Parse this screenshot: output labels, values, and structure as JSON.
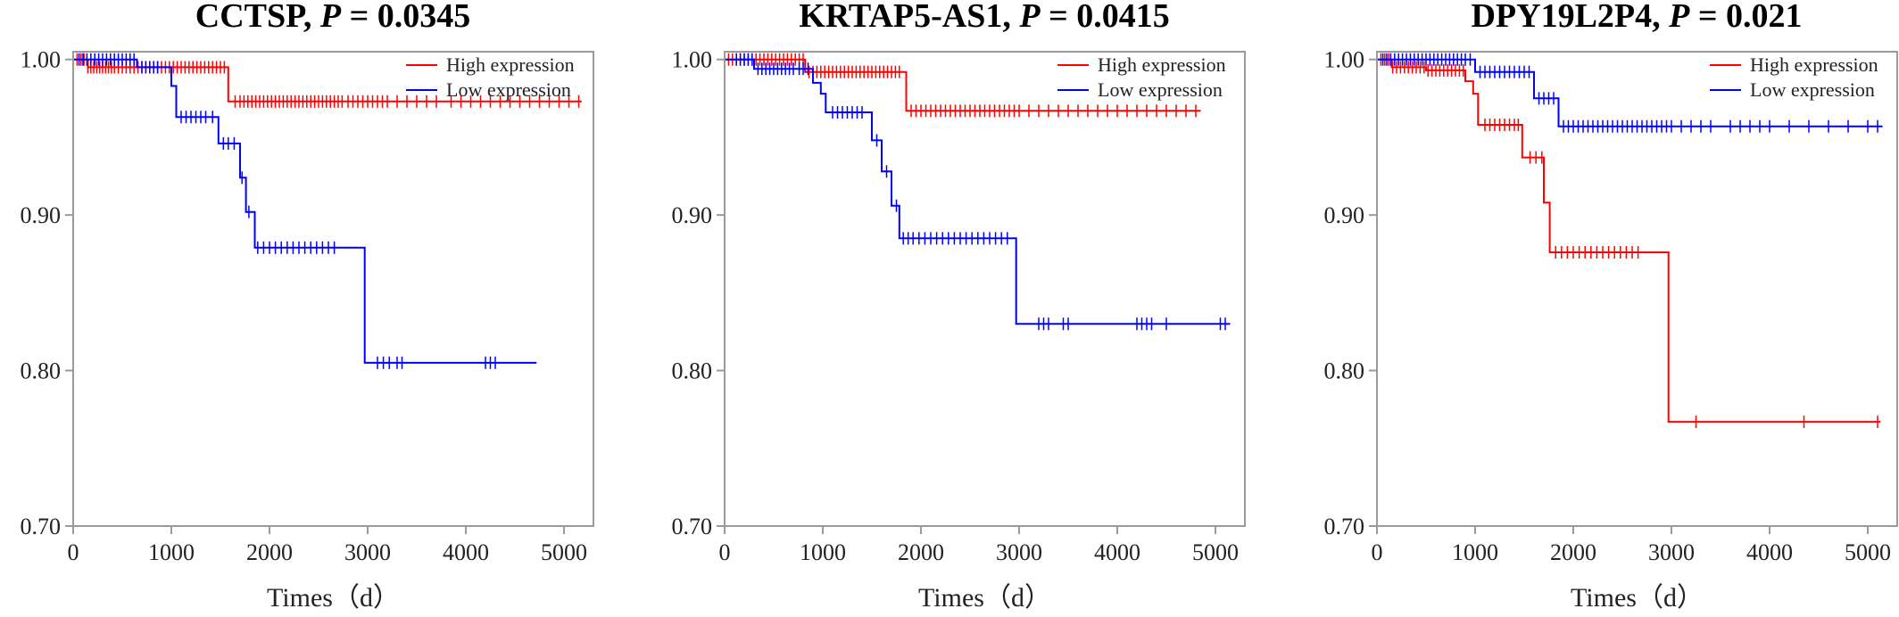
{
  "chart_data": [
    {
      "type": "line",
      "title_main": "CCTSP, ",
      "title_p": "P",
      "title_value": " = 0.0345",
      "xlabel": "Times（d）",
      "ylabel": "",
      "xlim": [
        0,
        5300
      ],
      "ylim": [
        0.7,
        1.005
      ],
      "x_ticks": [
        "0",
        "1000",
        "2000",
        "3000",
        "4000",
        "5000"
      ],
      "y_ticks": [
        "0.70",
        "0.80",
        "0.90",
        "1.00"
      ],
      "legend_position": "top-right",
      "series": [
        {
          "name": "High expression",
          "color": "#ff0000",
          "steps": [
            [
              0,
              1.0
            ],
            [
              150,
              0.995
            ],
            [
              1580,
              0.973
            ],
            [
              5180,
              0.973
            ]
          ],
          "censors": [
            40,
            80,
            110,
            150,
            180,
            210,
            240,
            270,
            300,
            330,
            360,
            390,
            420,
            460,
            500,
            540,
            580,
            620,
            660,
            700,
            740,
            780,
            820,
            860,
            900,
            940,
            980,
            1020,
            1060,
            1100,
            1140,
            1180,
            1220,
            1260,
            1300,
            1340,
            1380,
            1420,
            1460,
            1500,
            1540,
            1650,
            1700,
            1740,
            1780,
            1820,
            1860,
            1900,
            1940,
            1980,
            2020,
            2060,
            2100,
            2140,
            2180,
            2220,
            2260,
            2300,
            2340,
            2380,
            2420,
            2460,
            2500,
            2540,
            2580,
            2620,
            2660,
            2700,
            2740,
            2800,
            2850,
            2900,
            2950,
            3000,
            3050,
            3100,
            3150,
            3200,
            3300,
            3400,
            3500,
            3600,
            3700,
            3850,
            3950,
            4050,
            4150,
            4250,
            4350,
            4450,
            4550,
            4650,
            4750,
            4850,
            4950,
            5050,
            5150
          ]
        },
        {
          "name": "Low expression",
          "color": "#0000ff",
          "steps": [
            [
              0,
              1.0
            ],
            [
              650,
              0.995
            ],
            [
              1000,
              0.983
            ],
            [
              1050,
              0.963
            ],
            [
              1480,
              0.946
            ],
            [
              1700,
              0.924
            ],
            [
              1760,
              0.902
            ],
            [
              1850,
              0.879
            ],
            [
              2970,
              0.805
            ],
            [
              4720,
              0.805
            ]
          ],
          "censors": [
            60,
            100,
            140,
            180,
            220,
            260,
            300,
            340,
            380,
            420,
            460,
            500,
            540,
            580,
            620,
            700,
            740,
            780,
            820,
            860,
            1100,
            1150,
            1200,
            1250,
            1300,
            1350,
            1420,
            1530,
            1580,
            1640,
            1720,
            1790,
            1880,
            1940,
            2000,
            2060,
            2120,
            2180,
            2240,
            2300,
            2360,
            2420,
            2480,
            2540,
            2600,
            2660,
            3100,
            3160,
            3220,
            3300,
            3350,
            4200,
            4250,
            4300
          ]
        }
      ]
    },
    {
      "type": "line",
      "title_main": "KRTAP5-AS1, ",
      "title_p": "P",
      "title_value": " = 0.0415",
      "xlabel": "Times（d）",
      "ylabel": "",
      "xlim": [
        0,
        5300
      ],
      "ylim": [
        0.7,
        1.005
      ],
      "x_ticks": [
        "0",
        "1000",
        "2000",
        "3000",
        "4000",
        "5000"
      ],
      "y_ticks": [
        "0.70",
        "0.80",
        "0.90",
        "1.00"
      ],
      "legend_position": "top-right",
      "series": [
        {
          "name": "High expression",
          "color": "#ff0000",
          "steps": [
            [
              0,
              1.0
            ],
            [
              820,
              0.992
            ],
            [
              1850,
              0.967
            ],
            [
              4850,
              0.967
            ]
          ],
          "censors": [
            40,
            80,
            120,
            160,
            200,
            240,
            280,
            320,
            360,
            400,
            440,
            480,
            520,
            560,
            600,
            640,
            680,
            720,
            760,
            800,
            860,
            900,
            940,
            980,
            1020,
            1060,
            1100,
            1140,
            1180,
            1220,
            1260,
            1300,
            1340,
            1380,
            1420,
            1460,
            1500,
            1540,
            1580,
            1620,
            1660,
            1700,
            1740,
            1780,
            1900,
            1950,
            2000,
            2050,
            2100,
            2150,
            2200,
            2250,
            2300,
            2350,
            2400,
            2450,
            2500,
            2550,
            2600,
            2650,
            2700,
            2750,
            2800,
            2850,
            2900,
            2950,
            3000,
            3100,
            3200,
            3300,
            3400,
            3500,
            3600,
            3700,
            3800,
            3900,
            4000,
            4100,
            4200,
            4300,
            4400,
            4500,
            4600,
            4700,
            4800
          ]
        },
        {
          "name": "Low expression",
          "color": "#0000ff",
          "steps": [
            [
              0,
              1.0
            ],
            [
              300,
              0.994
            ],
            [
              900,
              0.985
            ],
            [
              980,
              0.978
            ],
            [
              1030,
              0.966
            ],
            [
              1500,
              0.948
            ],
            [
              1600,
              0.928
            ],
            [
              1700,
              0.906
            ],
            [
              1780,
              0.885
            ],
            [
              2970,
              0.83
            ],
            [
              5150,
              0.83
            ]
          ],
          "censors": [
            120,
            160,
            200,
            240,
            280,
            340,
            380,
            420,
            460,
            500,
            540,
            580,
            620,
            660,
            700,
            760,
            800,
            850,
            1100,
            1150,
            1200,
            1250,
            1300,
            1350,
            1400,
            1550,
            1650,
            1750,
            1820,
            1870,
            1920,
            1980,
            2040,
            2100,
            2160,
            2220,
            2280,
            2340,
            2400,
            2460,
            2520,
            2580,
            2640,
            2700,
            2760,
            2820,
            2880,
            3200,
            3250,
            3300,
            3450,
            3500,
            4200,
            4250,
            4300,
            4350,
            4500,
            5050,
            5100
          ]
        }
      ]
    },
    {
      "type": "line",
      "title_main": "DPY19L2P4, ",
      "title_p": "P",
      "title_value": " = 0.021",
      "xlabel": "Times（d）",
      "ylabel": "",
      "xlim": [
        0,
        5300
      ],
      "ylim": [
        0.7,
        1.005
      ],
      "x_ticks": [
        "0",
        "1000",
        "2000",
        "3000",
        "4000",
        "5000"
      ],
      "y_ticks": [
        "0.70",
        "0.80",
        "0.90",
        "1.00"
      ],
      "legend_position": "top-right",
      "series": [
        {
          "name": "High expression",
          "color": "#ff0000",
          "steps": [
            [
              0,
              1.0
            ],
            [
              150,
              0.995
            ],
            [
              500,
              0.993
            ],
            [
              900,
              0.986
            ],
            [
              980,
              0.978
            ],
            [
              1030,
              0.958
            ],
            [
              1480,
              0.937
            ],
            [
              1700,
              0.908
            ],
            [
              1760,
              0.876
            ],
            [
              2970,
              0.767
            ],
            [
              5130,
              0.767
            ]
          ],
          "censors": [
            40,
            80,
            120,
            160,
            200,
            240,
            280,
            320,
            360,
            400,
            440,
            480,
            520,
            560,
            600,
            640,
            680,
            720,
            760,
            800,
            840,
            880,
            1100,
            1150,
            1200,
            1250,
            1300,
            1350,
            1400,
            1440,
            1560,
            1620,
            1680,
            1820,
            1880,
            1940,
            2000,
            2060,
            2120,
            2180,
            2240,
            2300,
            2360,
            2420,
            2480,
            2540,
            2600,
            2660,
            3250,
            4350,
            5100
          ]
        },
        {
          "name": "Low expression",
          "color": "#0000ff",
          "steps": [
            [
              0,
              1.0
            ],
            [
              1000,
              0.992
            ],
            [
              1600,
              0.975
            ],
            [
              1850,
              0.957
            ],
            [
              5150,
              0.957
            ]
          ],
          "censors": [
            60,
            100,
            140,
            180,
            220,
            260,
            300,
            340,
            380,
            420,
            460,
            500,
            540,
            580,
            620,
            660,
            700,
            740,
            780,
            820,
            860,
            900,
            950,
            1050,
            1100,
            1150,
            1200,
            1250,
            1300,
            1350,
            1400,
            1450,
            1500,
            1550,
            1650,
            1700,
            1750,
            1800,
            1900,
            1950,
            2000,
            2050,
            2100,
            2150,
            2200,
            2250,
            2300,
            2350,
            2400,
            2450,
            2500,
            2550,
            2600,
            2650,
            2700,
            2750,
            2800,
            2850,
            2900,
            2950,
            3000,
            3100,
            3200,
            3300,
            3400,
            3600,
            3700,
            3800,
            3900,
            4000,
            4200,
            4400,
            4600,
            4800,
            5000,
            5100
          ]
        }
      ]
    }
  ]
}
